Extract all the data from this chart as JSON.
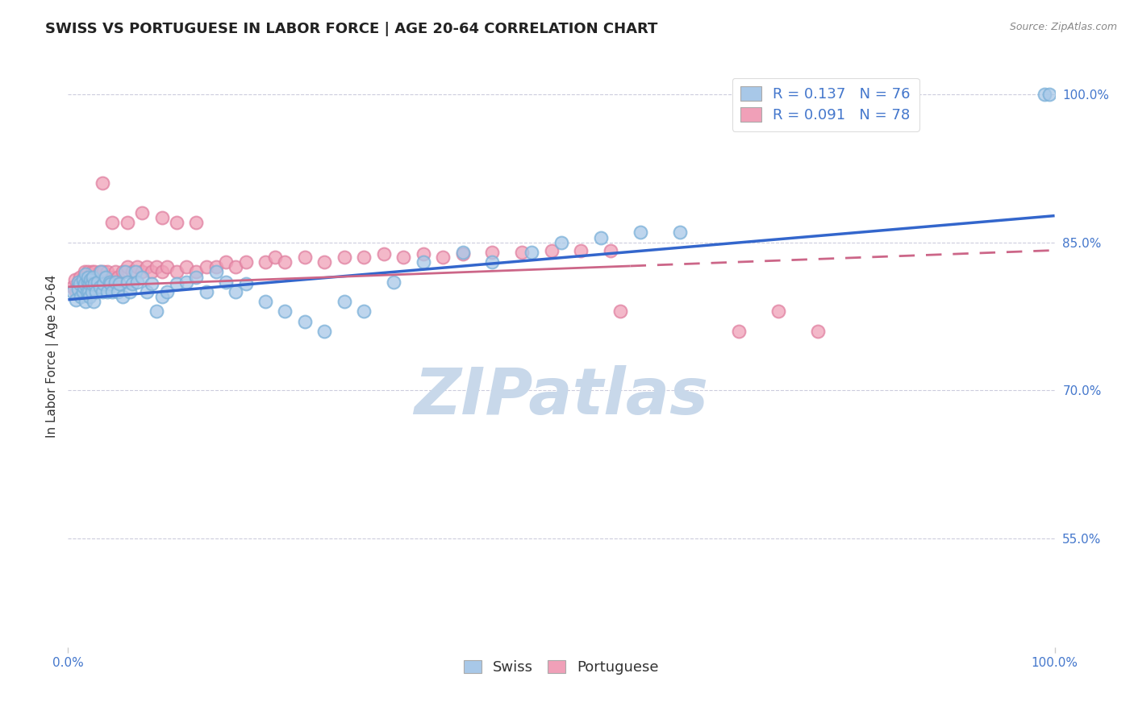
{
  "title": "SWISS VS PORTUGUESE IN LABOR FORCE | AGE 20-64 CORRELATION CHART",
  "source": "Source: ZipAtlas.com",
  "ylabel": "In Labor Force | Age 20-64",
  "xlim": [
    0.0,
    1.0
  ],
  "ylim": [
    0.44,
    1.03
  ],
  "yticks": [
    0.55,
    0.7,
    0.85,
    1.0
  ],
  "ytick_labels": [
    "55.0%",
    "70.0%",
    "85.0%",
    "100.0%"
  ],
  "xtick_labels": [
    "0.0%",
    "100.0%"
  ],
  "legend_r_swiss": "0.137",
  "legend_n_swiss": "76",
  "legend_r_port": "0.091",
  "legend_n_port": "78",
  "swiss_color": "#a8c8e8",
  "port_color": "#f0a0b8",
  "swiss_edge_color": "#7ab0d8",
  "port_edge_color": "#e080a0",
  "swiss_line_color": "#3366cc",
  "port_line_color": "#cc6688",
  "watermark": "ZIPatlas",
  "watermark_color": "#c8d8ea",
  "background_color": "#ffffff",
  "grid_color": "#ccccdd",
  "tick_color": "#4477cc",
  "title_color": "#222222",
  "source_color": "#888888",
  "ylabel_color": "#333333",
  "legend_text_color": "#4477cc",
  "swiss_line_y0": 0.792,
  "swiss_line_y1": 0.877,
  "port_line_y0": 0.805,
  "port_line_y1": 0.842,
  "port_line_solid_end_x": 0.57,
  "swiss_x": [
    0.005,
    0.008,
    0.01,
    0.01,
    0.012,
    0.013,
    0.015,
    0.015,
    0.016,
    0.017,
    0.018,
    0.018,
    0.019,
    0.02,
    0.02,
    0.021,
    0.022,
    0.022,
    0.023,
    0.024,
    0.024,
    0.025,
    0.026,
    0.027,
    0.028,
    0.03,
    0.032,
    0.033,
    0.035,
    0.036,
    0.038,
    0.04,
    0.042,
    0.043,
    0.045,
    0.048,
    0.05,
    0.052,
    0.055,
    0.058,
    0.06,
    0.063,
    0.065,
    0.068,
    0.07,
    0.075,
    0.08,
    0.085,
    0.09,
    0.095,
    0.1,
    0.11,
    0.12,
    0.13,
    0.14,
    0.15,
    0.16,
    0.17,
    0.18,
    0.2,
    0.22,
    0.24,
    0.26,
    0.28,
    0.3,
    0.33,
    0.36,
    0.4,
    0.43,
    0.47,
    0.5,
    0.54,
    0.58,
    0.62,
    0.99,
    0.995
  ],
  "swiss_y": [
    0.8,
    0.792,
    0.81,
    0.802,
    0.808,
    0.795,
    0.812,
    0.8,
    0.805,
    0.808,
    0.818,
    0.79,
    0.8,
    0.81,
    0.815,
    0.8,
    0.808,
    0.795,
    0.812,
    0.8,
    0.808,
    0.815,
    0.79,
    0.808,
    0.8,
    0.81,
    0.805,
    0.82,
    0.8,
    0.808,
    0.815,
    0.8,
    0.81,
    0.808,
    0.8,
    0.81,
    0.8,
    0.808,
    0.795,
    0.82,
    0.81,
    0.8,
    0.808,
    0.82,
    0.81,
    0.815,
    0.8,
    0.808,
    0.78,
    0.795,
    0.8,
    0.808,
    0.81,
    0.815,
    0.8,
    0.82,
    0.81,
    0.8,
    0.808,
    0.79,
    0.78,
    0.77,
    0.76,
    0.79,
    0.78,
    0.81,
    0.83,
    0.84,
    0.83,
    0.84,
    0.85,
    0.855,
    0.86,
    0.86,
    1.0,
    1.0
  ],
  "port_x": [
    0.005,
    0.007,
    0.008,
    0.01,
    0.012,
    0.013,
    0.014,
    0.015,
    0.015,
    0.016,
    0.017,
    0.018,
    0.019,
    0.02,
    0.02,
    0.022,
    0.023,
    0.024,
    0.025,
    0.026,
    0.027,
    0.028,
    0.03,
    0.032,
    0.034,
    0.036,
    0.038,
    0.04,
    0.042,
    0.045,
    0.048,
    0.05,
    0.055,
    0.06,
    0.065,
    0.07,
    0.075,
    0.08,
    0.085,
    0.09,
    0.095,
    0.1,
    0.11,
    0.12,
    0.13,
    0.14,
    0.15,
    0.16,
    0.17,
    0.18,
    0.2,
    0.21,
    0.22,
    0.24,
    0.26,
    0.28,
    0.3,
    0.32,
    0.34,
    0.36,
    0.38,
    0.4,
    0.43,
    0.46,
    0.49,
    0.52,
    0.55,
    0.11,
    0.13,
    0.035,
    0.045,
    0.06,
    0.075,
    0.095,
    0.56,
    0.68,
    0.72,
    0.76
  ],
  "port_y": [
    0.805,
    0.812,
    0.8,
    0.81,
    0.815,
    0.808,
    0.8,
    0.812,
    0.808,
    0.815,
    0.82,
    0.808,
    0.815,
    0.808,
    0.82,
    0.815,
    0.808,
    0.82,
    0.815,
    0.808,
    0.82,
    0.812,
    0.815,
    0.82,
    0.812,
    0.82,
    0.815,
    0.82,
    0.812,
    0.815,
    0.82,
    0.815,
    0.82,
    0.825,
    0.82,
    0.825,
    0.82,
    0.825,
    0.82,
    0.825,
    0.82,
    0.825,
    0.82,
    0.825,
    0.82,
    0.825,
    0.825,
    0.83,
    0.825,
    0.83,
    0.83,
    0.835,
    0.83,
    0.835,
    0.83,
    0.835,
    0.835,
    0.838,
    0.835,
    0.838,
    0.835,
    0.838,
    0.84,
    0.84,
    0.842,
    0.842,
    0.842,
    0.87,
    0.87,
    0.91,
    0.87,
    0.87,
    0.88,
    0.875,
    0.78,
    0.76,
    0.78,
    0.76
  ],
  "title_fontsize": 13,
  "axis_label_fontsize": 11,
  "tick_fontsize": 11,
  "legend_fontsize": 13,
  "marker_size": 130,
  "marker_lw": 1.5
}
